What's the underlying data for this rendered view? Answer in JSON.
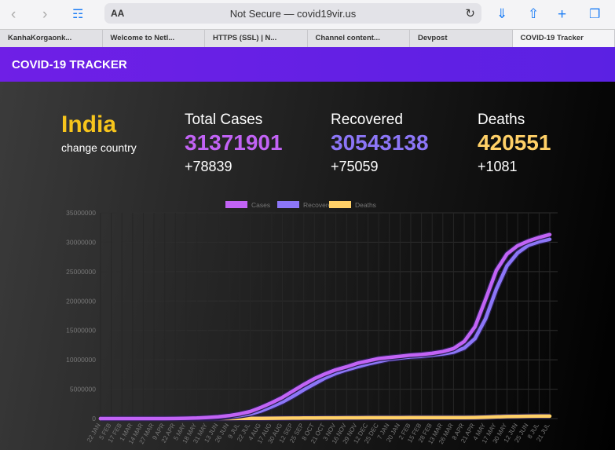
{
  "browser": {
    "text_size": "AA",
    "url": "Not Secure — covid19vir.us",
    "tabs": [
      "KanhaKorgaonk...",
      "Welcome to Netl...",
      "HTTPS (SSL) | N...",
      "Channel content...",
      "Devpost",
      "COVID-19 Tracker"
    ]
  },
  "header": {
    "title": "COVID-19 TRACKER"
  },
  "summary": {
    "country": "India",
    "change": "change country",
    "stats": [
      {
        "label": "Total Cases",
        "total": "31371901",
        "new": "+78839"
      },
      {
        "label": "Recovered",
        "total": "30543138",
        "new": "+75059"
      },
      {
        "label": "Deaths",
        "total": "420551",
        "new": "+1081"
      }
    ]
  },
  "chart_data": {
    "type": "line",
    "categories": [
      "22 JAN",
      "5 FEB",
      "17 FEB",
      "1 MAR",
      "14 MAR",
      "27 MAR",
      "9 APR",
      "22 APR",
      "5 MAY",
      "18 MAY",
      "31 MAY",
      "13 JUN",
      "26 JUN",
      "9 JUL",
      "22 JUL",
      "4 AUG",
      "17 AUG",
      "30 AUG",
      "12 SEP",
      "25 SEP",
      "8 OCT",
      "21 OCT",
      "3 NOV",
      "16 NOV",
      "29 NOV",
      "12 DEC",
      "25 DEC",
      "7 JAN",
      "20 JAN",
      "2 FEB",
      "15 FEB",
      "28 FEB",
      "13 MAR",
      "26 MAR",
      "8 APR",
      "21 APR",
      "4 MAY",
      "17 MAY",
      "30 MAY",
      "12 JUN",
      "25 JUN",
      "8 JUL",
      "21 JUL"
    ],
    "series": [
      {
        "name": "Cases",
        "color": "#c263f5",
        "values": [
          0,
          0,
          0,
          0,
          0,
          0,
          6000,
          20000,
          50000,
          100000,
          190000,
          310000,
          500000,
          790000,
          1200000,
          1900000,
          2700000,
          3600000,
          4700000,
          5800000,
          6800000,
          7600000,
          8300000,
          8800000,
          9400000,
          9800000,
          10200000,
          10400000,
          10600000,
          10800000,
          10900000,
          11100000,
          11400000,
          11900000,
          13100000,
          15600000,
          20300000,
          25200000,
          28000000,
          29400000,
          30200000,
          30800000,
          31300000
        ]
      },
      {
        "name": "Recovered",
        "color": "#8c76f7",
        "values": [
          0,
          0,
          0,
          0,
          0,
          0,
          500,
          4000,
          15000,
          40000,
          90000,
          160000,
          300000,
          500000,
          780000,
          1300000,
          2000000,
          2800000,
          3800000,
          4900000,
          5900000,
          6900000,
          7700000,
          8300000,
          8800000,
          9300000,
          9700000,
          10100000,
          10300000,
          10500000,
          10600000,
          10800000,
          11000000,
          11300000,
          12000000,
          13600000,
          17000000,
          22000000,
          26000000,
          28200000,
          29500000,
          30100000,
          30500000
        ]
      },
      {
        "name": "Deaths",
        "color": "#ffd067",
        "values": [
          0,
          0,
          0,
          0,
          0,
          0,
          200,
          700,
          1700,
          3200,
          5400,
          9200,
          15700,
          22000,
          29000,
          40000,
          51000,
          64000,
          78000,
          94000,
          107000,
          117000,
          125000,
          133000,
          138000,
          143000,
          147000,
          150000,
          153000,
          155000,
          156000,
          157000,
          159000,
          162000,
          168000,
          185000,
          230000,
          295000,
          350000,
          375000,
          395000,
          408000,
          420000
        ]
      }
    ],
    "ylim": [
      0,
      35000000
    ],
    "yticks": [
      0,
      5000000,
      10000000,
      15000000,
      20000000,
      25000000,
      30000000,
      35000000
    ],
    "grid": true
  }
}
